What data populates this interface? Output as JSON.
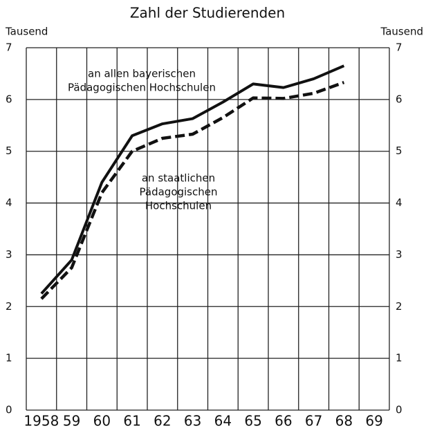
{
  "chart_data": {
    "type": "line",
    "title": "Zahl der Studierenden",
    "ylabel": "Tausend",
    "y2label": "Tausend",
    "categories": [
      "1958",
      "59",
      "60",
      "61",
      "62",
      "63",
      "64",
      "65",
      "66",
      "67",
      "68",
      "69"
    ],
    "series": [
      {
        "label_lines": [
          "an allen bayerischen",
          "Pädagogischen Hochschulen"
        ],
        "color": "#111111",
        "dashed": false,
        "values": [
          2.25,
          2.9,
          4.4,
          5.3,
          5.53,
          5.63,
          5.95,
          6.3,
          6.23,
          6.4,
          6.65,
          null
        ]
      },
      {
        "label_lines": [
          "an staatlichen",
          "Pädagogischen",
          "Hochschulen"
        ],
        "color": "#111111",
        "dashed": true,
        "values": [
          2.15,
          2.75,
          4.2,
          5.0,
          5.25,
          5.33,
          5.65,
          6.03,
          6.02,
          6.12,
          6.33,
          null
        ]
      }
    ],
    "ylim": [
      0,
      7
    ],
    "yticks": [
      0,
      1,
      2,
      3,
      4,
      5,
      6,
      7
    ],
    "grid": true
  }
}
